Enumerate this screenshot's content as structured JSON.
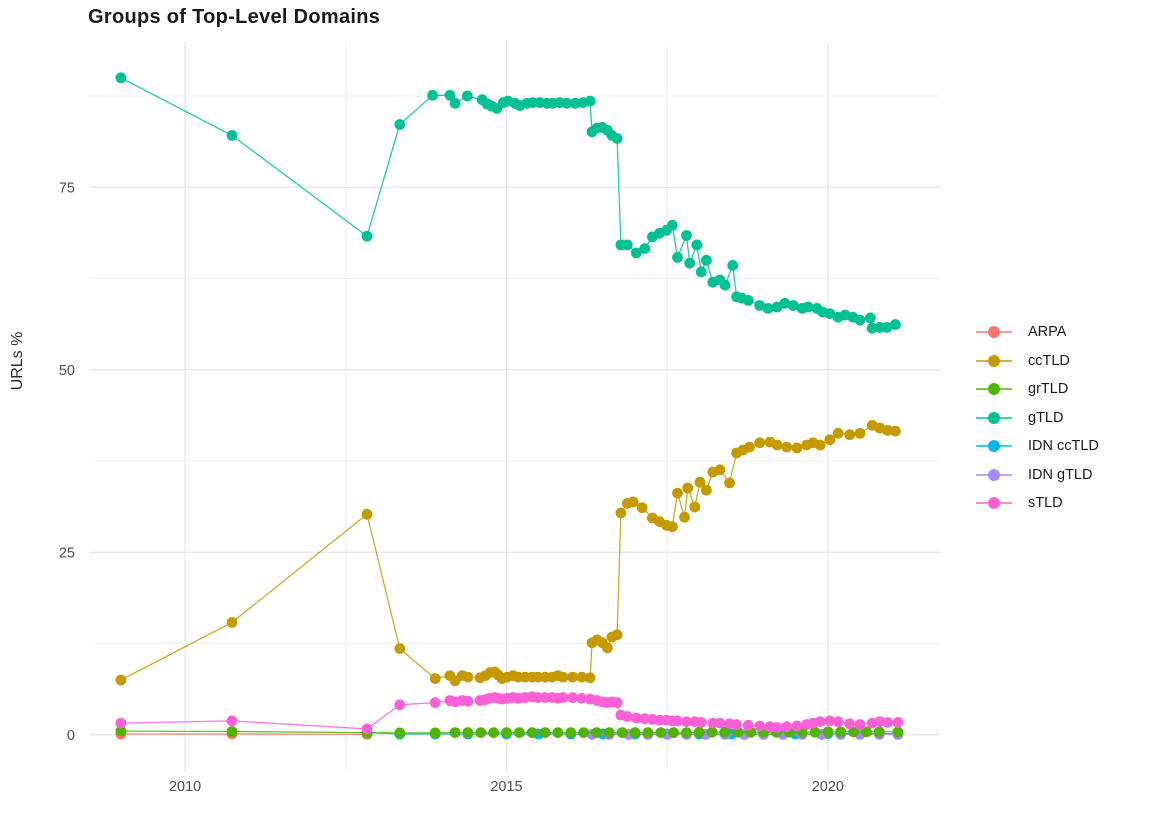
{
  "figure": {
    "title": "Groups of Top-Level Domains",
    "y_axis_title": "URLs %"
  },
  "style": {
    "background": "#ffffff",
    "grid_major": "#e4e4e4",
    "grid_minor": "#f0f0f0",
    "tick_text": "#4d4d4d",
    "title_text": "#1a1a1a"
  },
  "chart_data": {
    "type": "line",
    "title": "Groups of Top-Level Domains",
    "xlabel": "",
    "ylabel": "URLs %",
    "grid": true,
    "legend_position": "right",
    "xlim": [
      2008.52,
      2021.76
    ],
    "ylim": [
      -5.1,
      94.9
    ],
    "x_ticks": [
      2010,
      2015,
      2020
    ],
    "x_minor_ticks": [
      2012.5,
      2017.5
    ],
    "y_ticks": [
      0,
      25,
      50,
      75
    ],
    "y_minor_ticks": [
      12.5,
      37.5,
      62.5,
      87.5
    ],
    "series": [
      {
        "name": "ARPA",
        "color": "#F8766D",
        "z": 1,
        "points": [
          [
            2009.0,
            0.1
          ],
          [
            2010.73,
            0.1
          ],
          [
            2012.83,
            0.05
          ]
        ]
      },
      {
        "name": "ccTLD",
        "color": "#C49A00",
        "z": 6,
        "points": [
          [
            2009.0,
            7.5
          ],
          [
            2010.73,
            15.4
          ],
          [
            2012.83,
            30.2
          ],
          [
            2013.34,
            11.8
          ],
          [
            2013.89,
            7.7
          ],
          [
            2014.12,
            8.1
          ],
          [
            2014.2,
            7.4
          ],
          [
            2014.31,
            8.1
          ],
          [
            2014.4,
            7.9
          ],
          [
            2014.59,
            7.8
          ],
          [
            2014.67,
            8.1
          ],
          [
            2014.74,
            8.5
          ],
          [
            2014.82,
            8.6
          ],
          [
            2014.87,
            8.2
          ],
          [
            2014.93,
            7.7
          ],
          [
            2015.01,
            7.9
          ],
          [
            2015.1,
            8.1
          ],
          [
            2015.18,
            7.9
          ],
          [
            2015.29,
            7.9
          ],
          [
            2015.4,
            7.9
          ],
          [
            2015.49,
            7.9
          ],
          [
            2015.6,
            7.9
          ],
          [
            2015.71,
            7.9
          ],
          [
            2015.8,
            8.1
          ],
          [
            2015.88,
            7.9
          ],
          [
            2016.03,
            7.9
          ],
          [
            2016.17,
            7.9
          ],
          [
            2016.3,
            7.8
          ],
          [
            2016.33,
            12.6
          ],
          [
            2016.41,
            13.0
          ],
          [
            2016.49,
            12.6
          ],
          [
            2016.57,
            11.9
          ],
          [
            2016.64,
            13.4
          ],
          [
            2016.72,
            13.7
          ],
          [
            2016.78,
            30.4
          ],
          [
            2016.88,
            31.7
          ],
          [
            2016.97,
            31.9
          ],
          [
            2017.11,
            31.1
          ],
          [
            2017.27,
            29.7
          ],
          [
            2017.38,
            29.2
          ],
          [
            2017.49,
            28.7
          ],
          [
            2017.58,
            28.5
          ],
          [
            2017.66,
            33.1
          ],
          [
            2017.77,
            29.8
          ],
          [
            2017.82,
            33.8
          ],
          [
            2017.93,
            31.2
          ],
          [
            2018.01,
            34.6
          ],
          [
            2018.11,
            33.5
          ],
          [
            2018.21,
            36.0
          ],
          [
            2018.32,
            36.3
          ],
          [
            2018.47,
            34.5
          ],
          [
            2018.58,
            38.6
          ],
          [
            2018.68,
            39.0
          ],
          [
            2018.78,
            39.4
          ],
          [
            2018.94,
            40.0
          ],
          [
            2019.1,
            40.1
          ],
          [
            2019.21,
            39.7
          ],
          [
            2019.36,
            39.4
          ],
          [
            2019.52,
            39.3
          ],
          [
            2019.67,
            39.7
          ],
          [
            2019.77,
            40.0
          ],
          [
            2019.88,
            39.7
          ],
          [
            2020.03,
            40.4
          ],
          [
            2020.16,
            41.3
          ],
          [
            2020.34,
            41.1
          ],
          [
            2020.5,
            41.3
          ],
          [
            2020.69,
            42.4
          ],
          [
            2020.81,
            42.0
          ],
          [
            2020.93,
            41.7
          ],
          [
            2021.05,
            41.6
          ]
        ]
      },
      {
        "name": "grTLD",
        "color": "#53B400",
        "z": 4,
        "points": [
          [
            2009.0,
            0.5
          ],
          [
            2010.73,
            0.45
          ],
          [
            2012.83,
            0.3
          ],
          [
            2013.34,
            0.25
          ],
          [
            2013.89,
            0.25
          ],
          [
            2014.2,
            0.3
          ],
          [
            2014.4,
            0.3
          ],
          [
            2014.6,
            0.3
          ],
          [
            2014.8,
            0.3
          ],
          [
            2015.0,
            0.3
          ],
          [
            2015.2,
            0.3
          ],
          [
            2015.4,
            0.3
          ],
          [
            2015.6,
            0.3
          ],
          [
            2015.8,
            0.3
          ],
          [
            2016.0,
            0.3
          ],
          [
            2016.2,
            0.3
          ],
          [
            2016.4,
            0.3
          ],
          [
            2016.6,
            0.3
          ],
          [
            2016.8,
            0.3
          ],
          [
            2017.0,
            0.3
          ],
          [
            2017.2,
            0.3
          ],
          [
            2017.4,
            0.3
          ],
          [
            2017.6,
            0.3
          ],
          [
            2017.8,
            0.3
          ],
          [
            2018.0,
            0.35
          ],
          [
            2018.2,
            0.35
          ],
          [
            2018.4,
            0.35
          ],
          [
            2018.6,
            0.35
          ],
          [
            2018.8,
            0.35
          ],
          [
            2019.0,
            0.35
          ],
          [
            2019.2,
            0.35
          ],
          [
            2019.4,
            0.35
          ],
          [
            2019.6,
            0.35
          ],
          [
            2019.8,
            0.35
          ],
          [
            2020.0,
            0.4
          ],
          [
            2020.2,
            0.4
          ],
          [
            2020.4,
            0.4
          ],
          [
            2020.6,
            0.4
          ],
          [
            2020.8,
            0.4
          ],
          [
            2021.09,
            0.4
          ]
        ]
      },
      {
        "name": "gTLD",
        "color": "#00C094",
        "z": 5,
        "points": [
          [
            2009.0,
            90.0
          ],
          [
            2010.73,
            82.1
          ],
          [
            2012.83,
            68.3
          ],
          [
            2013.34,
            83.6
          ],
          [
            2013.85,
            87.6
          ],
          [
            2014.12,
            87.6
          ],
          [
            2014.2,
            86.5
          ],
          [
            2014.39,
            87.5
          ],
          [
            2014.62,
            87.0
          ],
          [
            2014.7,
            86.4
          ],
          [
            2014.77,
            86.1
          ],
          [
            2014.85,
            85.8
          ],
          [
            2014.95,
            86.6
          ],
          [
            2015.02,
            86.8
          ],
          [
            2015.13,
            86.5
          ],
          [
            2015.21,
            86.2
          ],
          [
            2015.32,
            86.5
          ],
          [
            2015.41,
            86.6
          ],
          [
            2015.52,
            86.6
          ],
          [
            2015.63,
            86.5
          ],
          [
            2015.72,
            86.5
          ],
          [
            2015.83,
            86.6
          ],
          [
            2015.94,
            86.5
          ],
          [
            2016.07,
            86.5
          ],
          [
            2016.19,
            86.6
          ],
          [
            2016.3,
            86.8
          ],
          [
            2016.33,
            82.6
          ],
          [
            2016.41,
            83.1
          ],
          [
            2016.49,
            83.2
          ],
          [
            2016.57,
            82.8
          ],
          [
            2016.64,
            82.1
          ],
          [
            2016.72,
            81.7
          ],
          [
            2016.78,
            67.1
          ],
          [
            2016.88,
            67.1
          ],
          [
            2017.02,
            66.0
          ],
          [
            2017.15,
            66.6
          ],
          [
            2017.27,
            68.2
          ],
          [
            2017.38,
            68.7
          ],
          [
            2017.49,
            69.1
          ],
          [
            2017.58,
            69.8
          ],
          [
            2017.66,
            65.4
          ],
          [
            2017.8,
            68.4
          ],
          [
            2017.85,
            64.6
          ],
          [
            2017.96,
            67.1
          ],
          [
            2018.03,
            63.4
          ],
          [
            2018.11,
            65.0
          ],
          [
            2018.21,
            62.0
          ],
          [
            2018.32,
            62.3
          ],
          [
            2018.4,
            61.6
          ],
          [
            2018.52,
            64.3
          ],
          [
            2018.58,
            60.0
          ],
          [
            2018.66,
            59.8
          ],
          [
            2018.76,
            59.5
          ],
          [
            2018.94,
            58.8
          ],
          [
            2019.07,
            58.4
          ],
          [
            2019.21,
            58.6
          ],
          [
            2019.33,
            59.1
          ],
          [
            2019.46,
            58.8
          ],
          [
            2019.6,
            58.4
          ],
          [
            2019.69,
            58.6
          ],
          [
            2019.83,
            58.4
          ],
          [
            2019.92,
            57.9
          ],
          [
            2020.03,
            57.7
          ],
          [
            2020.16,
            57.2
          ],
          [
            2020.27,
            57.5
          ],
          [
            2020.39,
            57.2
          ],
          [
            2020.5,
            56.8
          ],
          [
            2020.66,
            57.1
          ],
          [
            2020.69,
            55.7
          ],
          [
            2020.81,
            55.8
          ],
          [
            2020.92,
            55.8
          ],
          [
            2021.05,
            56.2
          ]
        ]
      },
      {
        "name": "IDN ccTLD",
        "color": "#00B6EB",
        "z": 2,
        "points": [
          [
            2012.83,
            0.3
          ],
          [
            2013.34,
            0.1
          ],
          [
            2013.89,
            0.1
          ],
          [
            2014.4,
            0.1
          ],
          [
            2015.0,
            0.1
          ],
          [
            2015.5,
            0.1
          ],
          [
            2016.0,
            0.1
          ],
          [
            2016.5,
            0.1
          ],
          [
            2017.0,
            0.1
          ],
          [
            2017.5,
            0.1
          ],
          [
            2018.0,
            0.1
          ],
          [
            2018.5,
            0.1
          ],
          [
            2019.0,
            0.1
          ],
          [
            2019.5,
            0.1
          ],
          [
            2020.0,
            0.15
          ],
          [
            2020.5,
            0.15
          ],
          [
            2021.09,
            0.15
          ]
        ]
      },
      {
        "name": "IDN gTLD",
        "color": "#A58AFF",
        "z": 3,
        "points": [
          [
            2016.33,
            0.05
          ],
          [
            2016.6,
            0.05
          ],
          [
            2016.9,
            0.05
          ],
          [
            2017.2,
            0.05
          ],
          [
            2017.5,
            0.05
          ],
          [
            2017.8,
            0.05
          ],
          [
            2018.1,
            0.05
          ],
          [
            2018.4,
            0.05
          ],
          [
            2018.7,
            0.05
          ],
          [
            2019.0,
            0.05
          ],
          [
            2019.3,
            0.05
          ],
          [
            2019.6,
            0.05
          ],
          [
            2019.9,
            0.05
          ],
          [
            2020.2,
            0.05
          ],
          [
            2020.5,
            0.05
          ],
          [
            2020.8,
            0.05
          ],
          [
            2021.09,
            0.05
          ]
        ]
      },
      {
        "name": "sTLD",
        "color": "#FB61D7",
        "z": 7,
        "points": [
          [
            2009.0,
            1.6
          ],
          [
            2010.73,
            1.9
          ],
          [
            2012.83,
            0.8
          ],
          [
            2013.34,
            4.1
          ],
          [
            2013.89,
            4.4
          ],
          [
            2014.12,
            4.7
          ],
          [
            2014.2,
            4.5
          ],
          [
            2014.31,
            4.7
          ],
          [
            2014.4,
            4.6
          ],
          [
            2014.59,
            4.7
          ],
          [
            2014.67,
            4.8
          ],
          [
            2014.74,
            5.0
          ],
          [
            2014.82,
            5.1
          ],
          [
            2014.87,
            5.0
          ],
          [
            2014.93,
            4.9
          ],
          [
            2015.01,
            5.0
          ],
          [
            2015.1,
            5.1
          ],
          [
            2015.18,
            5.0
          ],
          [
            2015.29,
            5.1
          ],
          [
            2015.4,
            5.2
          ],
          [
            2015.49,
            5.1
          ],
          [
            2015.6,
            5.1
          ],
          [
            2015.71,
            5.1
          ],
          [
            2015.8,
            5.0
          ],
          [
            2015.88,
            5.1
          ],
          [
            2016.03,
            5.1
          ],
          [
            2016.17,
            5.0
          ],
          [
            2016.3,
            4.9
          ],
          [
            2016.41,
            4.7
          ],
          [
            2016.49,
            4.5
          ],
          [
            2016.57,
            4.4
          ],
          [
            2016.64,
            4.5
          ],
          [
            2016.72,
            4.4
          ],
          [
            2016.78,
            2.7
          ],
          [
            2016.88,
            2.5
          ],
          [
            2017.02,
            2.3
          ],
          [
            2017.15,
            2.2
          ],
          [
            2017.27,
            2.1
          ],
          [
            2017.38,
            2.0
          ],
          [
            2017.49,
            2.0
          ],
          [
            2017.58,
            1.9
          ],
          [
            2017.66,
            1.9
          ],
          [
            2017.8,
            1.8
          ],
          [
            2017.93,
            1.8
          ],
          [
            2018.03,
            1.7
          ],
          [
            2018.21,
            1.6
          ],
          [
            2018.32,
            1.6
          ],
          [
            2018.47,
            1.5
          ],
          [
            2018.58,
            1.4
          ],
          [
            2018.76,
            1.3
          ],
          [
            2018.94,
            1.2
          ],
          [
            2019.1,
            1.1
          ],
          [
            2019.21,
            1.0
          ],
          [
            2019.36,
            1.1
          ],
          [
            2019.52,
            1.2
          ],
          [
            2019.67,
            1.4
          ],
          [
            2019.77,
            1.6
          ],
          [
            2019.88,
            1.8
          ],
          [
            2020.03,
            1.9
          ],
          [
            2020.16,
            1.8
          ],
          [
            2020.34,
            1.5
          ],
          [
            2020.5,
            1.4
          ],
          [
            2020.69,
            1.6
          ],
          [
            2020.81,
            1.8
          ],
          [
            2020.93,
            1.7
          ],
          [
            2021.09,
            1.7
          ]
        ]
      }
    ]
  }
}
